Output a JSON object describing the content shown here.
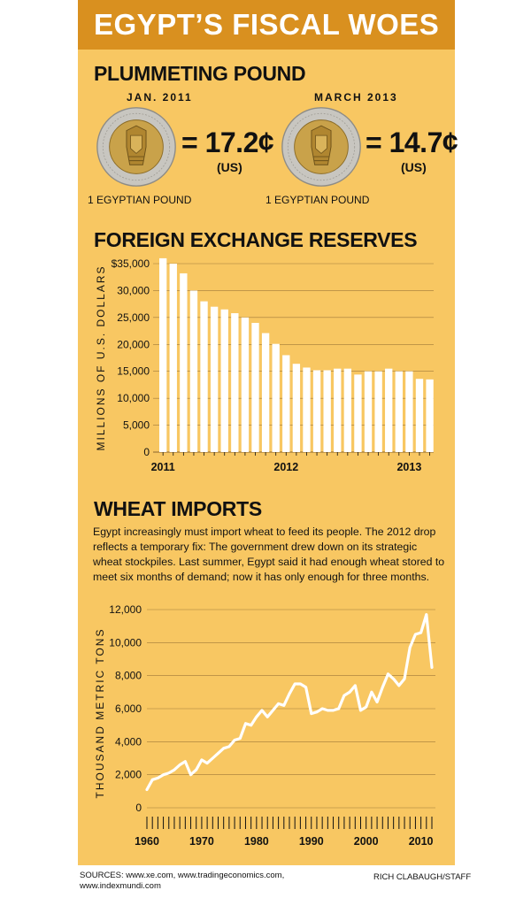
{
  "title": "EGYPT’S FISCAL WOES",
  "pound_section": {
    "heading": "PLUMMETING POUND",
    "coins": [
      {
        "date": "JAN. 2011",
        "value": "= 17.2¢",
        "unit": "(US)",
        "caption": "1 EGYPTIAN POUND"
      },
      {
        "date": "MARCH 2013",
        "value": "= 14.7¢",
        "unit": "(US)",
        "caption": "1 EGYPTIAN POUND"
      }
    ]
  },
  "reserves_section": {
    "heading": "FOREIGN EXCHANGE RESERVES"
  },
  "wheat_section": {
    "heading": "WHEAT IMPORTS",
    "description": "Egypt increasingly must import wheat to feed its people. The 2012 drop reflects a temporary fix: The government drew down on its strategic wheat stockpiles. Last summer, Egypt said it had enough wheat stored to meet six months of demand; now it has only enough for three months."
  },
  "footer": {
    "sources": "SOURCES: www.xe.com, www.tradingeconomics.com, www.indexmundi.com",
    "credit": "RICH CLABAUGH/STAFF"
  },
  "colors": {
    "panel": "#f8c762",
    "title_bar": "#d9901f",
    "bars": "#ffffff",
    "gridlines": "#a07a3a",
    "line": "#ffffff"
  },
  "chart_data": [
    {
      "id": "reserves",
      "type": "bar",
      "title": "FOREIGN EXCHANGE RESERVES",
      "ylabel": "MILLIONS OF U.S. DOLLARS",
      "xlabel": "",
      "ylim": [
        0,
        35000
      ],
      "yticks": [
        0,
        5000,
        10000,
        15000,
        20000,
        25000,
        30000,
        35000
      ],
      "ytick_labels": [
        "0",
        "5,000",
        "10,000",
        "15,000",
        "20,000",
        "25,000",
        "30,000",
        "$35,000"
      ],
      "grid": true,
      "x_tick_labels": [
        {
          "index": 0,
          "label": "2011"
        },
        {
          "index": 12,
          "label": "2012"
        },
        {
          "index": 24,
          "label": "2013"
        }
      ],
      "categories": [
        "Jan 2011",
        "Feb 2011",
        "Mar 2011",
        "Apr 2011",
        "May 2011",
        "Jun 2011",
        "Jul 2011",
        "Aug 2011",
        "Sep 2011",
        "Oct 2011",
        "Nov 2011",
        "Dec 2011",
        "Jan 2012",
        "Feb 2012",
        "Mar 2012",
        "Apr 2012",
        "May 2012",
        "Jun 2012",
        "Jul 2012",
        "Aug 2012",
        "Sep 2012",
        "Oct 2012",
        "Nov 2012",
        "Dec 2012",
        "Jan 2013",
        "Feb 2013",
        "Mar 2013"
      ],
      "values": [
        36000,
        35000,
        33200,
        30000,
        28000,
        27000,
        26500,
        25800,
        25000,
        24000,
        22100,
        20100,
        18000,
        16400,
        15700,
        15200,
        15200,
        15500,
        15500,
        14400,
        15000,
        15000,
        15500,
        15000,
        15000,
        13600,
        13500
      ]
    },
    {
      "id": "wheat",
      "type": "line",
      "title": "WHEAT IMPORTS",
      "ylabel": "THOUSAND METRIC TONS",
      "xlabel": "",
      "ylim": [
        0,
        12000
      ],
      "xlim": [
        1960,
        2012
      ],
      "yticks": [
        0,
        2000,
        4000,
        6000,
        8000,
        10000,
        12000
      ],
      "ytick_labels": [
        "0",
        "2,000",
        "4,000",
        "6,000",
        "8,000",
        "10,000",
        "12,000"
      ],
      "xtick_labels": [
        1960,
        1970,
        1980,
        1990,
        2000,
        2010
      ],
      "grid": true,
      "x": [
        1960,
        1961,
        1962,
        1963,
        1964,
        1965,
        1966,
        1967,
        1968,
        1969,
        1970,
        1971,
        1972,
        1973,
        1974,
        1975,
        1976,
        1977,
        1978,
        1979,
        1980,
        1981,
        1982,
        1983,
        1984,
        1985,
        1986,
        1987,
        1988,
        1989,
        1990,
        1991,
        1992,
        1993,
        1994,
        1995,
        1996,
        1997,
        1998,
        1999,
        2000,
        2001,
        2002,
        2003,
        2004,
        2005,
        2006,
        2007,
        2008,
        2009,
        2010,
        2011,
        2012
      ],
      "values": [
        1100,
        1700,
        1800,
        2000,
        2100,
        2300,
        2600,
        2800,
        2000,
        2300,
        2900,
        2700,
        3000,
        3300,
        3600,
        3700,
        4100,
        4200,
        5100,
        5000,
        5500,
        5900,
        5500,
        5900,
        6300,
        6200,
        6900,
        7500,
        7500,
        7300,
        5700,
        5800,
        6000,
        5900,
        5900,
        6000,
        6800,
        7000,
        7400,
        5900,
        6100,
        7000,
        6400,
        7300,
        8100,
        7800,
        7400,
        7800,
        9700,
        10500,
        10600,
        11700,
        8500
      ]
    }
  ]
}
